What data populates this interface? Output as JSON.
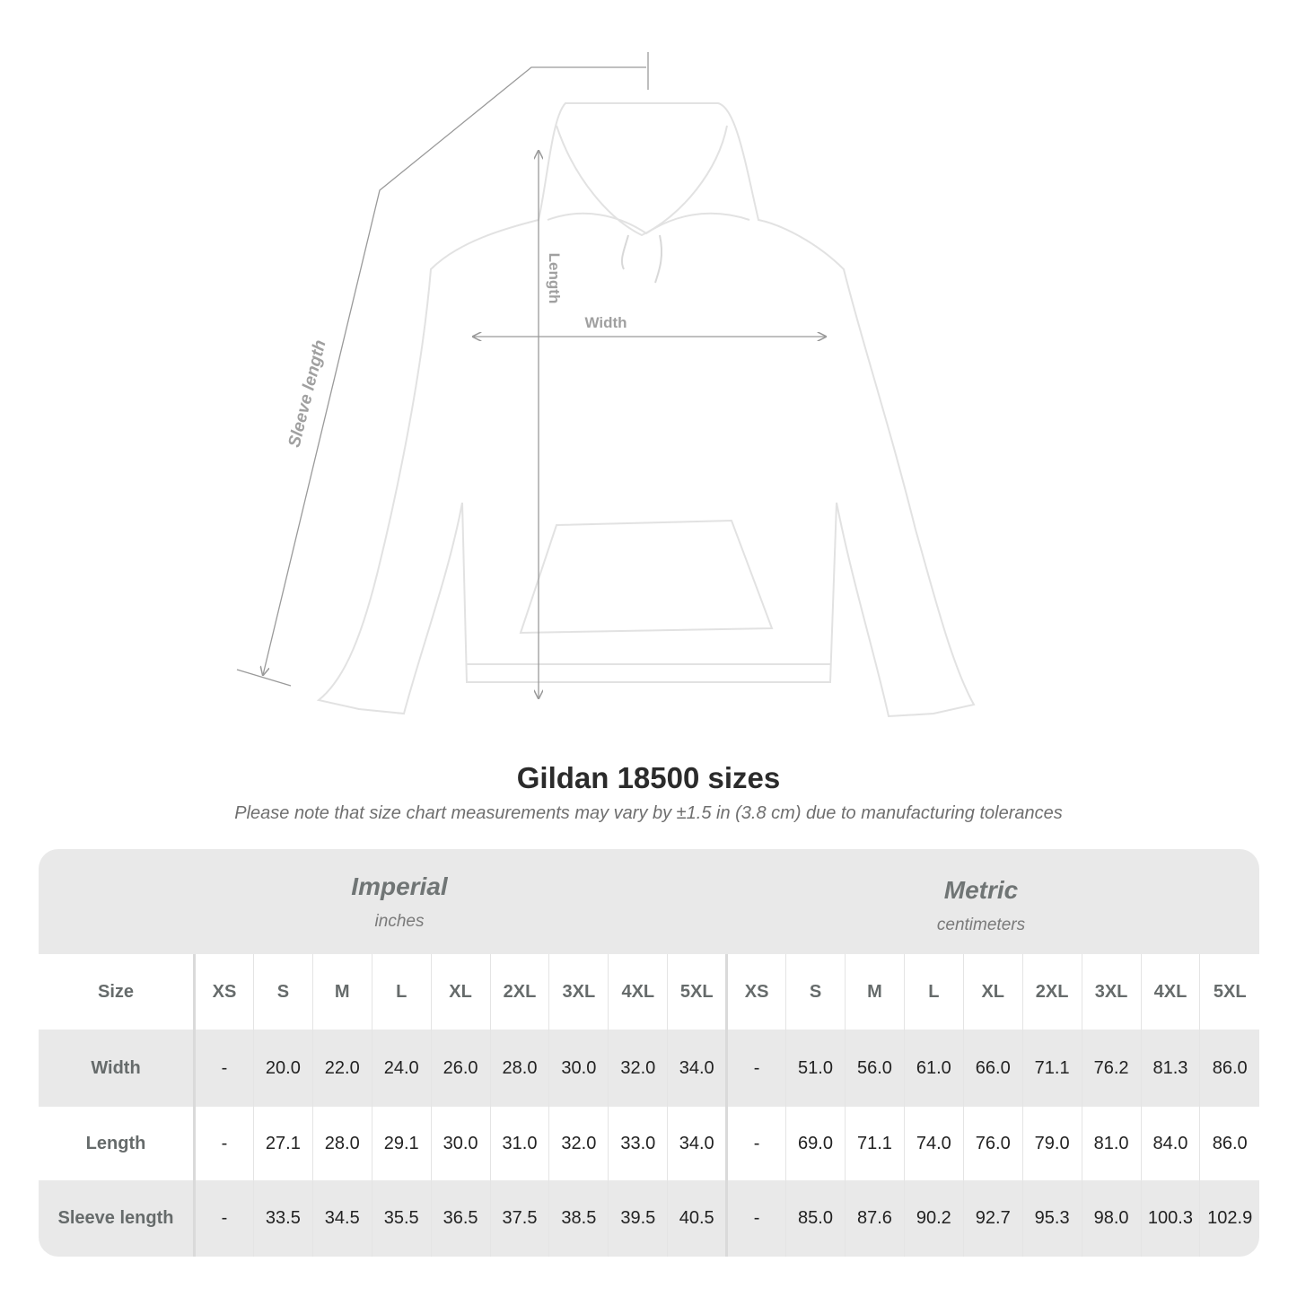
{
  "diagram": {
    "labels": {
      "sleeve": "Sleeve length",
      "length": "Length",
      "width": "Width"
    },
    "colors": {
      "garment": "#ffffff",
      "measure_line": "#9a9a9a"
    }
  },
  "title": "Gildan 18500 sizes",
  "subtitle": "Please note that size chart measurements may vary by ±1.5 in (3.8 cm) due to manufacturing tolerances",
  "systems": {
    "imperial": {
      "name": "Imperial",
      "unit": "inches"
    },
    "metric": {
      "name": "Metric",
      "unit": "centimeters"
    }
  },
  "table": {
    "size_label": "Size",
    "sizes": [
      "XS",
      "S",
      "M",
      "L",
      "XL",
      "2XL",
      "3XL",
      "4XL",
      "5XL"
    ],
    "rows": [
      {
        "label": "Width",
        "imperial": [
          "-",
          "20.0",
          "22.0",
          "24.0",
          "26.0",
          "28.0",
          "30.0",
          "32.0",
          "34.0"
        ],
        "metric": [
          "-",
          "51.0",
          "56.0",
          "61.0",
          "66.0",
          "71.1",
          "76.2",
          "81.3",
          "86.0"
        ]
      },
      {
        "label": "Length",
        "imperial": [
          "-",
          "27.1",
          "28.0",
          "29.1",
          "30.0",
          "31.0",
          "32.0",
          "33.0",
          "34.0"
        ],
        "metric": [
          "-",
          "69.0",
          "71.1",
          "74.0",
          "76.0",
          "79.0",
          "81.0",
          "84.0",
          "86.0"
        ]
      },
      {
        "label": "Sleeve length",
        "imperial": [
          "-",
          "33.5",
          "34.5",
          "35.5",
          "36.5",
          "37.5",
          "38.5",
          "39.5",
          "40.5"
        ],
        "metric": [
          "-",
          "85.0",
          "87.6",
          "90.2",
          "92.7",
          "95.3",
          "98.0",
          "100.3",
          "102.9"
        ]
      }
    ]
  }
}
